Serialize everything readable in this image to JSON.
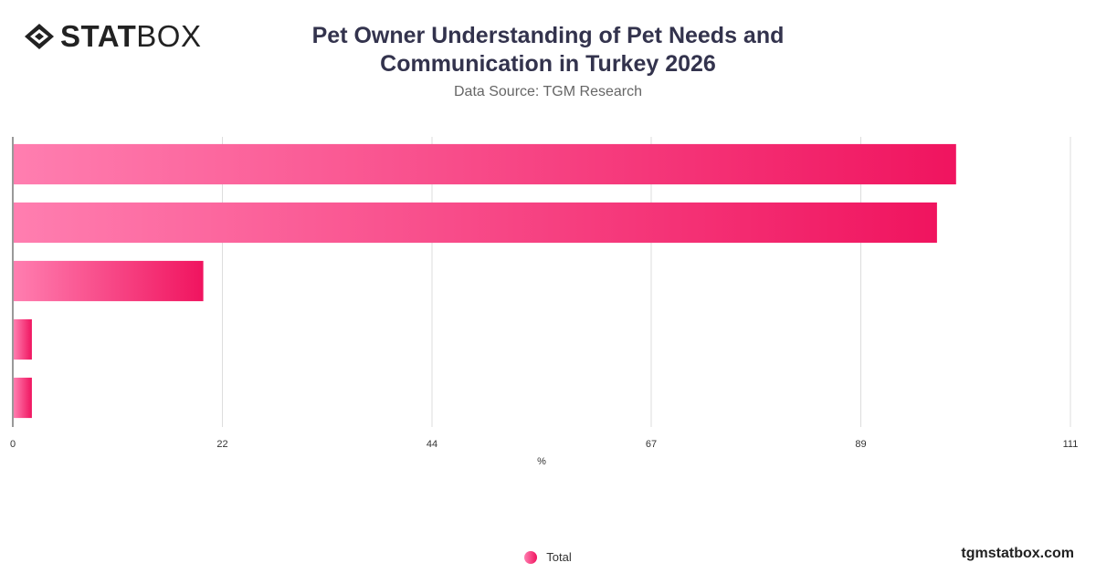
{
  "brand": {
    "logo_bold": "STAT",
    "logo_light": "BOX",
    "site": "tgmstatbox.com"
  },
  "colors": {
    "bar_start": "#ff7eb0",
    "bar_end": "#f0145f",
    "grid": "#dddddd",
    "axis": "#333333"
  },
  "chart_data": {
    "type": "bar",
    "orientation": "horizontal",
    "title": "Pet Owner Understanding of Pet Needs and Communication in Turkey 2026",
    "subtitle": "Data Source: TGM Research",
    "categories": [
      "",
      "",
      "",
      "",
      ""
    ],
    "series": [
      {
        "name": "Total",
        "values": [
          99,
          97,
          20,
          2,
          2
        ]
      }
    ],
    "xlabel": "%",
    "xlim": [
      0,
      111
    ],
    "xticks": [
      0,
      22,
      44,
      67,
      89,
      111
    ],
    "grid": true,
    "legend": "bottom-center"
  }
}
